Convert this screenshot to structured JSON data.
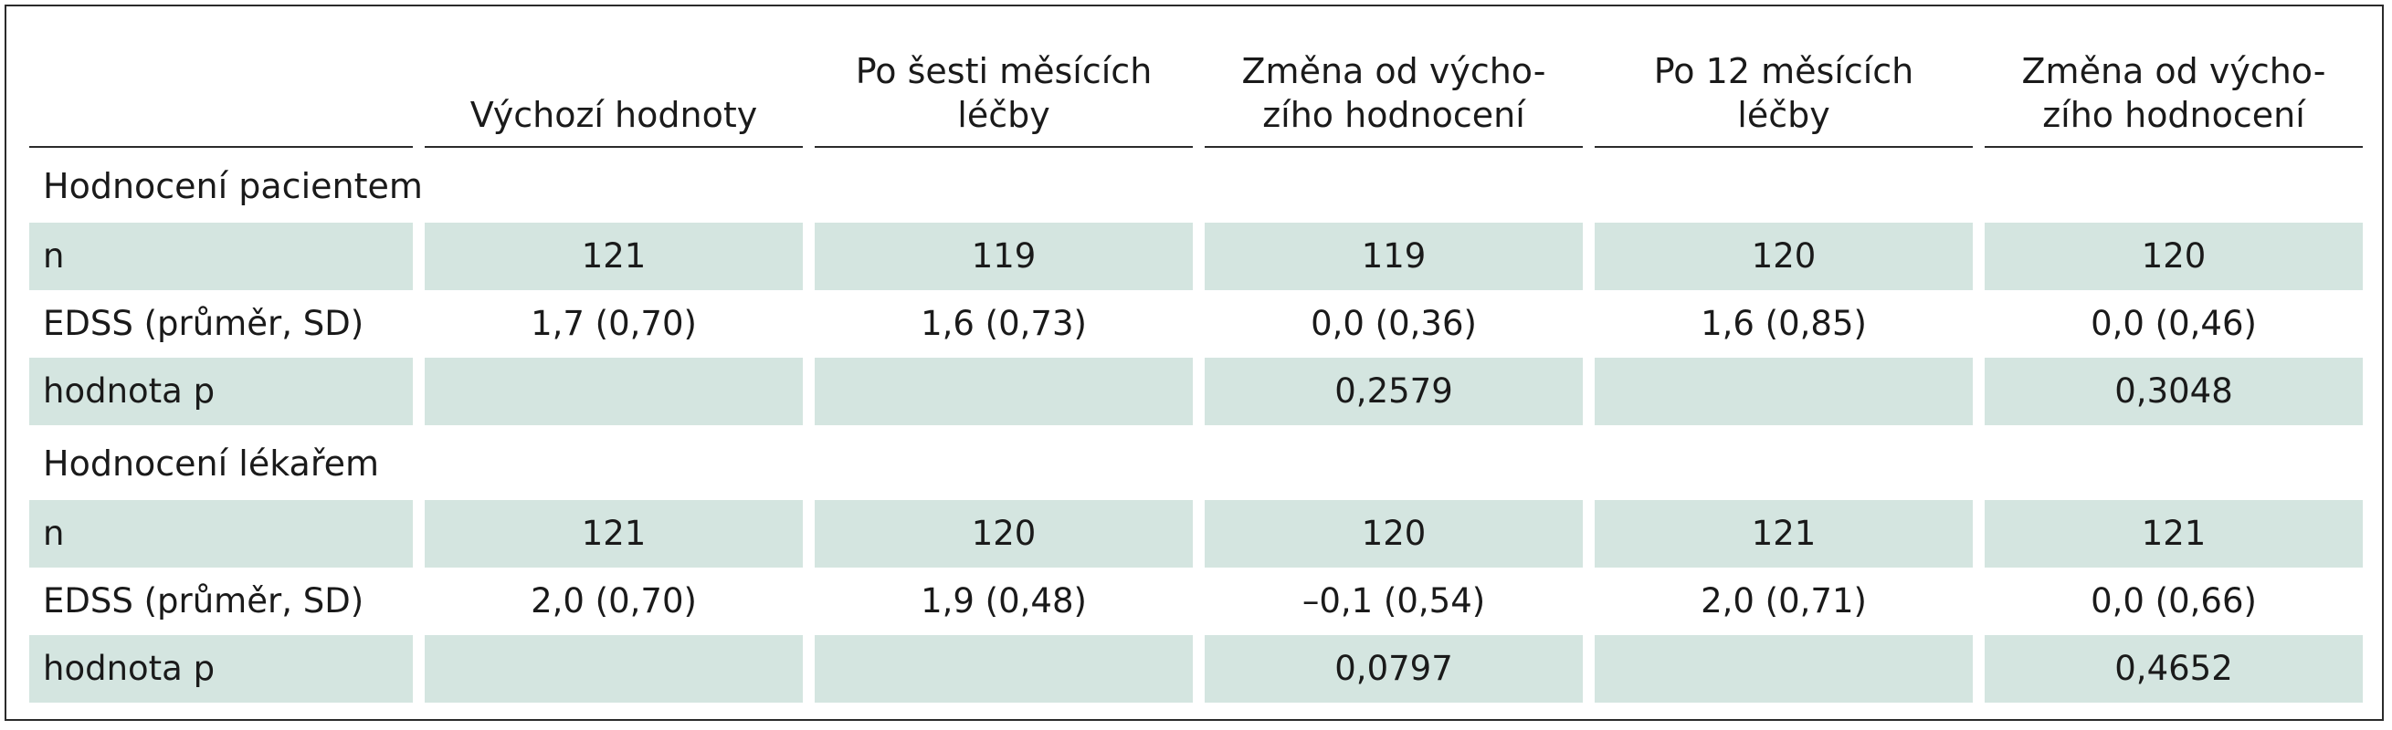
{
  "table": {
    "headers": [
      "",
      "Výchozí hodnoty",
      "Po šesti měsících léčby",
      "Změna od výcho-\nzího hodnocení",
      "Po 12 měsících léčby",
      "Změna od výcho-\nzího hodnocení"
    ],
    "header_lines": [
      [
        ""
      ],
      [
        "Výchozí hodnoty"
      ],
      [
        "Po šesti měsících",
        "léčby"
      ],
      [
        "Změna od výcho-",
        "zího hodnocení"
      ],
      [
        "Po 12 měsících",
        "léčby"
      ],
      [
        "Změna od výcho-",
        "zího hodnocení"
      ]
    ],
    "sections": [
      {
        "title": "Hodnocení pacientem",
        "rows": [
          {
            "label": "n",
            "cells": [
              "121",
              "119",
              "119",
              "120",
              "120"
            ]
          },
          {
            "label": "EDSS (průměr, SD)",
            "cells": [
              "1,7 (0,70)",
              "1,6 (0,73)",
              "0,0 (0,36)",
              "1,6 (0,85)",
              "0,0 (0,46)"
            ]
          },
          {
            "label": "hodnota p",
            "cells": [
              "",
              "",
              "0,2579",
              "",
              "0,3048"
            ]
          }
        ]
      },
      {
        "title": "Hodnocení lékařem",
        "rows": [
          {
            "label": "n",
            "cells": [
              "121",
              "120",
              "120",
              "121",
              "121"
            ]
          },
          {
            "label": "EDSS (průměr, SD)",
            "cells": [
              "2,0 (0,70)",
              "1,9 (0,48)",
              "–0,1 (0,54)",
              "2,0 (0,71)",
              "0,0 (0,66)"
            ]
          },
          {
            "label": "hodnota p",
            "cells": [
              "",
              "",
              "0,0797",
              "",
              "0,4652"
            ]
          }
        ]
      }
    ]
  },
  "colors": {
    "row_shade": "#d4e5e0",
    "border": "#2b2b2b",
    "text": "#1a1a1a"
  }
}
